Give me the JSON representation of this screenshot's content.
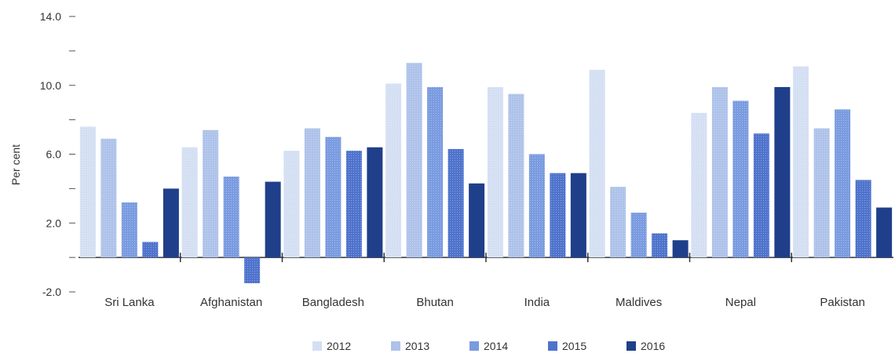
{
  "chart_data": {
    "type": "bar",
    "title": "",
    "xlabel": "",
    "ylabel": "Per cent",
    "ylim": [
      -2.0,
      14.0
    ],
    "yticks": [
      -2.0,
      0,
      2.0,
      4.0,
      6.0,
      8.0,
      10.0,
      12.0,
      14.0
    ],
    "ytick_labels": [
      "-2.0",
      "",
      "2.0",
      "",
      "6.0",
      "",
      "10.0",
      "",
      "14.0"
    ],
    "grid": false,
    "legend_position": "bottom",
    "categories": [
      "Sri Lanka",
      "Afghanistan",
      "Bangladesh",
      "Bhutan",
      "India",
      "Maldives",
      "Nepal",
      "Pakistan"
    ],
    "series": [
      {
        "name": "2012",
        "color": "#d4dff3",
        "values": [
          7.6,
          6.4,
          6.2,
          10.1,
          9.9,
          10.9,
          8.4,
          11.1
        ]
      },
      {
        "name": "2013",
        "color": "#aec2ea",
        "values": [
          6.9,
          7.4,
          7.5,
          11.3,
          9.5,
          4.1,
          9.9,
          7.5
        ]
      },
      {
        "name": "2014",
        "color": "#7a9be0",
        "values": [
          3.2,
          4.7,
          7.0,
          9.9,
          6.0,
          2.6,
          9.1,
          8.6
        ]
      },
      {
        "name": "2015",
        "color": "#4f73cc",
        "values": [
          0.9,
          -1.5,
          6.2,
          6.3,
          4.9,
          1.4,
          7.2,
          4.5
        ]
      },
      {
        "name": "2016",
        "color": "#1f3f8a",
        "values": [
          4.0,
          4.4,
          6.4,
          4.3,
          4.9,
          1.0,
          9.9,
          2.9
        ]
      }
    ]
  }
}
